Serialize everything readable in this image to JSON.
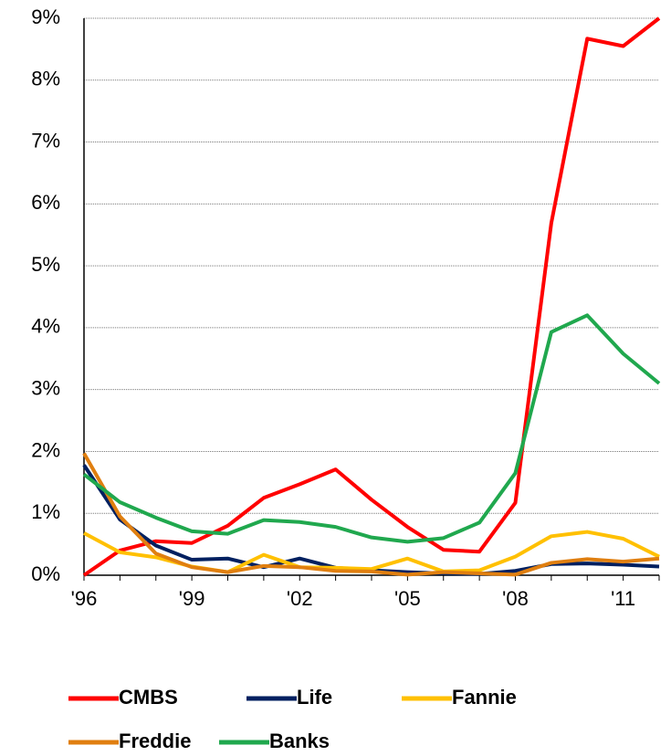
{
  "chart_data": {
    "type": "line",
    "categories": [
      "'96",
      null,
      null,
      "'99",
      null,
      null,
      "'02",
      null,
      null,
      "'05",
      null,
      null,
      "'08",
      null,
      null,
      "'11",
      null
    ],
    "series": [
      {
        "name": "CMBS",
        "color": "#ff0000",
        "values": [
          0,
          0.4,
          0.55,
          0.52,
          0.8,
          1.25,
          1.47,
          1.71,
          1.22,
          0.78,
          0.41,
          0.38,
          1.17,
          5.69,
          8.67,
          8.55,
          9.0
        ]
      },
      {
        "name": "Life",
        "color": "#002060",
        "values": [
          1.78,
          0.9,
          0.48,
          0.25,
          0.27,
          0.13,
          0.27,
          0.12,
          0.08,
          0.05,
          0.03,
          0.02,
          0.07,
          0.18,
          0.19,
          0.17,
          0.14
        ]
      },
      {
        "name": "Fannie",
        "color": "#ffc000",
        "values": [
          0.68,
          0.37,
          0.29,
          0.14,
          0.05,
          0.33,
          0.13,
          0.12,
          0.1,
          0.27,
          0.06,
          0.08,
          0.3,
          0.63,
          0.7,
          0.59,
          0.3
        ]
      },
      {
        "name": "Freddie",
        "color": "#e07f10",
        "values": [
          1.97,
          0.95,
          0.35,
          0.13,
          0.05,
          0.15,
          0.13,
          0.07,
          0.06,
          0.01,
          0.05,
          0.03,
          0.01,
          0.2,
          0.26,
          0.22,
          0.27
        ]
      },
      {
        "name": "Banks",
        "color": "#20a84e",
        "values": [
          1.63,
          1.18,
          0.93,
          0.71,
          0.67,
          0.89,
          0.86,
          0.78,
          0.61,
          0.54,
          0.6,
          0.85,
          1.65,
          3.93,
          4.2,
          3.58,
          3.1
        ]
      }
    ],
    "ylim": [
      0,
      9
    ],
    "yticks": [
      {
        "value": 0,
        "label": "0%"
      },
      {
        "value": 1,
        "label": "1%"
      },
      {
        "value": 2,
        "label": "2%"
      },
      {
        "value": 3,
        "label": "3%"
      },
      {
        "value": 4,
        "label": "4%"
      },
      {
        "value": 5,
        "label": "5%"
      },
      {
        "value": 6,
        "label": "6%"
      },
      {
        "value": 7,
        "label": "7%"
      },
      {
        "value": 8,
        "label": "8%"
      },
      {
        "value": 9,
        "label": "9%"
      }
    ],
    "grid": true
  }
}
